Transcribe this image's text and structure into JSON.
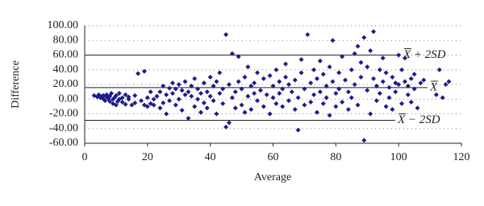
{
  "chart_data": {
    "type": "scatter",
    "x_label": "Average",
    "y_label": "Difference",
    "color": "#1c1c8c",
    "xlim": [
      0,
      120
    ],
    "xticks": [
      0,
      20,
      40,
      60,
      80,
      100,
      120
    ],
    "ylim": [
      -60,
      100
    ],
    "yticks": [
      {
        "value": -60,
        "label": "-60.00"
      },
      {
        "value": -40,
        "label": "-40.00"
      },
      {
        "value": -20,
        "label": "-20.00"
      },
      {
        "value": 0,
        "label": "0.00"
      },
      {
        "value": 20,
        "label": "20.00"
      },
      {
        "value": 40,
        "label": "40.00"
      },
      {
        "value": 60,
        "label": "60.00"
      },
      {
        "value": 80,
        "label": "80.00"
      },
      {
        "value": 100,
        "label": "100.00"
      }
    ],
    "grid": true,
    "reference_lines": [
      {
        "label": "X + 2SD",
        "value": 60.1
      },
      {
        "label": "X",
        "value": 15.7
      },
      {
        "label": "X − 2SD",
        "value": -28.7
      }
    ],
    "x": [
      3,
      4,
      4.5,
      5,
      5.5,
      6,
      6,
      6.5,
      7,
      7,
      7.5,
      8,
      8,
      8.5,
      9,
      9,
      9.5,
      10,
      10,
      10.5,
      11,
      11,
      12,
      12,
      13,
      13,
      14,
      14,
      15,
      16,
      16,
      17,
      18,
      19,
      19,
      20,
      20,
      21,
      21,
      22,
      22,
      23,
      24,
      24,
      25,
      25,
      26,
      26,
      27,
      27,
      28,
      28,
      29,
      29,
      30,
      30,
      31,
      31,
      32,
      32,
      33,
      33,
      34,
      34,
      35,
      35,
      36,
      36,
      37,
      37,
      38,
      38,
      39,
      39,
      40,
      40,
      41,
      41,
      42,
      42,
      43,
      43,
      44,
      44,
      45,
      45,
      46,
      46,
      47,
      47,
      48,
      48,
      49,
      49,
      50,
      50,
      51,
      51,
      52,
      52,
      53,
      53,
      54,
      54,
      55,
      55,
      56,
      57,
      57,
      58,
      59,
      59,
      60,
      60,
      61,
      61,
      62,
      62,
      63,
      63,
      64,
      64,
      65,
      65,
      66,
      67,
      67,
      68,
      68,
      69,
      69,
      70,
      70,
      71,
      72,
      72,
      73,
      73,
      74,
      74,
      75,
      75,
      76,
      76,
      77,
      77,
      78,
      78,
      79,
      79,
      80,
      80,
      81,
      81,
      82,
      82,
      83,
      84,
      84,
      85,
      85,
      86,
      86,
      87,
      87,
      88,
      88,
      89,
      89,
      90,
      90,
      91,
      91,
      92,
      92,
      93,
      93,
      94,
      94,
      95,
      95,
      96,
      96,
      97,
      97,
      98,
      98,
      99,
      99,
      100,
      100,
      101,
      101,
      102,
      102,
      103,
      103,
      104,
      104,
      105,
      105,
      106,
      107,
      108,
      112,
      113,
      114,
      115,
      116
    ],
    "values": [
      5,
      3,
      6,
      2,
      4,
      0,
      5,
      -2,
      3,
      6,
      1,
      -3,
      4,
      8,
      -6,
      0,
      2,
      -8,
      5,
      -3,
      0,
      8,
      -4,
      2,
      6,
      -7,
      0,
      3,
      -8,
      -5,
      5,
      35,
      -2,
      -8,
      38,
      -10,
      2,
      -6,
      10,
      -8,
      0,
      4,
      -12,
      10,
      -5,
      18,
      -20,
      6,
      15,
      -2,
      22,
      8,
      -8,
      14,
      20,
      0,
      12,
      -15,
      6,
      24,
      -26,
      10,
      4,
      18,
      -10,
      28,
      0,
      14,
      -18,
      8,
      22,
      -5,
      10,
      -12,
      30,
      4,
      -2,
      18,
      24,
      -20,
      8,
      36,
      14,
      -6,
      88,
      -38,
      -32,
      20,
      62,
      2,
      10,
      -12,
      58,
      24,
      -8,
      14,
      30,
      -18,
      4,
      44,
      18,
      -14,
      8,
      22,
      -2,
      36,
      12,
      28,
      -10,
      6,
      32,
      -20,
      18,
      2,
      40,
      -6,
      24,
      8,
      -10,
      14,
      48,
      30,
      -2,
      20,
      10,
      26,
      -14,
      -42,
      2,
      54,
      36,
      14,
      -8,
      88,
      22,
      -4,
      40,
      6,
      -18,
      28,
      52,
      10,
      34,
      -6,
      18,
      2,
      44,
      -22,
      80,
      24,
      8,
      -10,
      36,
      14,
      -4,
      58,
      26,
      10,
      -14,
      40,
      2,
      62,
      20,
      72,
      -8,
      50,
      30,
      84,
      -56,
      12,
      44,
      -20,
      66,
      92,
      28,
      18,
      -2,
      40,
      8,
      56,
      24,
      -10,
      36,
      16,
      2,
      30,
      -14,
      22,
      10,
      60,
      20,
      40,
      -6,
      24,
      56,
      6,
      18,
      28,
      -4,
      14,
      34,
      -12,
      22,
      26,
      6,
      40,
      2,
      20,
      24
    ]
  }
}
